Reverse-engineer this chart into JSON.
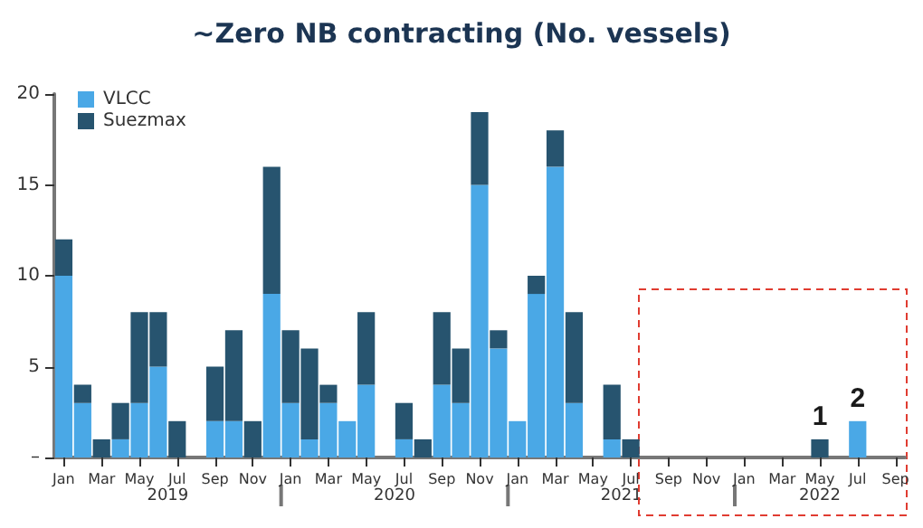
{
  "chart_data": {
    "type": "bar",
    "title": "~Zero NB contracting (No. vessels)",
    "stacked": true,
    "legend": "top left",
    "grid": false,
    "categories": [
      "Jan",
      null,
      "Mar",
      null,
      "May",
      null,
      "Jul",
      null,
      "Sep",
      null,
      "Nov",
      null,
      "Jan",
      null,
      "Mar",
      null,
      "May",
      null,
      "Jul",
      null,
      "Sep",
      null,
      "Nov",
      null,
      "Jan",
      null,
      "Mar",
      null,
      "May",
      null,
      "Jul",
      null,
      "Sep",
      null,
      "Nov",
      null,
      "Jan",
      null,
      "Mar",
      null,
      "May",
      null,
      "Jul",
      null,
      "Sep"
    ],
    "series": [
      {
        "name": "VLCC",
        "color": "#4aa8e6",
        "values": [
          10,
          3,
          0,
          1,
          3,
          5,
          0,
          0,
          2,
          2,
          0,
          9,
          3,
          1,
          3,
          2,
          4,
          0,
          1,
          0,
          4,
          3,
          15,
          6,
          2,
          9,
          16,
          3,
          0,
          1,
          0,
          0,
          0,
          0,
          0,
          0,
          0,
          0,
          0,
          0,
          0,
          0,
          2,
          0,
          0
        ],
        "value_labels": [
          null,
          null,
          null,
          null,
          null,
          null,
          null,
          null,
          null,
          null,
          null,
          null,
          null,
          null,
          null,
          null,
          null,
          null,
          null,
          null,
          null,
          null,
          null,
          null,
          null,
          null,
          null,
          null,
          null,
          null,
          null,
          null,
          null,
          null,
          null,
          null,
          null,
          null,
          null,
          null,
          null,
          null,
          "2",
          null,
          null
        ]
      },
      {
        "name": "Suezmax",
        "color": "#27546f",
        "values": [
          2,
          1,
          1,
          2,
          5,
          3,
          2,
          0,
          3,
          5,
          2,
          7,
          4,
          5,
          1,
          0,
          4,
          0,
          2,
          1,
          4,
          3,
          4,
          1,
          0,
          1,
          2,
          5,
          0,
          3,
          1,
          0,
          0,
          0,
          0,
          0,
          0,
          0,
          0,
          0,
          1,
          0,
          0,
          0,
          0
        ],
        "value_labels": [
          null,
          null,
          null,
          null,
          null,
          null,
          null,
          null,
          null,
          null,
          null,
          null,
          null,
          null,
          null,
          null,
          null,
          null,
          null,
          null,
          null,
          null,
          null,
          null,
          null,
          null,
          null,
          null,
          null,
          null,
          null,
          null,
          null,
          null,
          null,
          null,
          null,
          null,
          null,
          null,
          "1",
          null,
          null,
          null,
          null
        ]
      }
    ],
    "ylim": [
      0,
      20
    ],
    "yticks": [
      {
        "value": 0,
        "label": "–"
      },
      5,
      10,
      15,
      20
    ],
    "annotations": [
      "2019",
      "2020",
      "2021",
      "2022"
    ]
  }
}
